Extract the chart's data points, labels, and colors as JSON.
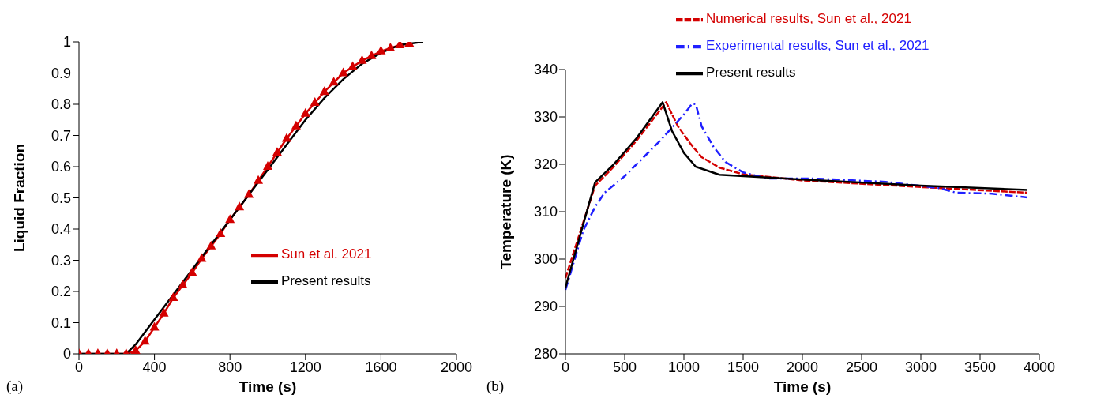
{
  "chart_data": [
    {
      "type": "line",
      "xlabel": "Time (s)",
      "ylabel": "Liquid Fraction",
      "xlim": [
        0,
        2000
      ],
      "ylim": [
        0,
        1
      ],
      "xticks": [
        0,
        400,
        800,
        1200,
        1600,
        2000
      ],
      "yticks": [
        0,
        0.1,
        0.2,
        0.3,
        0.4,
        0.5,
        0.6,
        0.7,
        0.8,
        0.9,
        1
      ],
      "grid": false,
      "legend": "right",
      "annotations": [
        "(a)"
      ],
      "series": [
        {
          "name": "Sun et al. 2021",
          "color": "#d40000",
          "marker": "triangle",
          "line_style": "solid",
          "x": [
            0,
            50,
            100,
            150,
            200,
            250,
            300,
            350,
            400,
            450,
            500,
            550,
            600,
            650,
            700,
            750,
            800,
            850,
            900,
            950,
            1000,
            1050,
            1100,
            1150,
            1200,
            1250,
            1300,
            1350,
            1400,
            1450,
            1500,
            1550,
            1600,
            1650,
            1700,
            1750
          ],
          "values": [
            0,
            0,
            0,
            0,
            0,
            0,
            0.01,
            0.04,
            0.085,
            0.13,
            0.18,
            0.22,
            0.26,
            0.305,
            0.345,
            0.385,
            0.43,
            0.47,
            0.51,
            0.555,
            0.6,
            0.645,
            0.69,
            0.73,
            0.77,
            0.805,
            0.84,
            0.87,
            0.9,
            0.92,
            0.94,
            0.955,
            0.97,
            0.98,
            0.99,
            0.995
          ]
        },
        {
          "name": "Present results",
          "color": "#000000",
          "marker": "none",
          "line_style": "solid",
          "x": [
            0,
            250,
            300,
            400,
            500,
            600,
            700,
            800,
            900,
            1000,
            1100,
            1200,
            1300,
            1400,
            1500,
            1600,
            1700,
            1820
          ],
          "values": [
            0,
            0,
            0.03,
            0.11,
            0.19,
            0.27,
            0.35,
            0.43,
            0.51,
            0.59,
            0.67,
            0.75,
            0.82,
            0.88,
            0.93,
            0.965,
            0.99,
            1
          ]
        }
      ]
    },
    {
      "type": "line",
      "xlabel": "Time (s)",
      "ylabel": "Temperature (K)",
      "xlim": [
        0,
        4000
      ],
      "ylim": [
        280,
        340
      ],
      "xticks": [
        0,
        500,
        1000,
        1500,
        2000,
        2500,
        3000,
        3500,
        4000
      ],
      "yticks": [
        280,
        290,
        300,
        310,
        320,
        330,
        340
      ],
      "grid": false,
      "legend": "top",
      "annotations": [
        "(b)"
      ],
      "series": [
        {
          "name": "Numerical results, Sun et al., 2021",
          "color": "#d40000",
          "marker": "none",
          "line_style": "dashed",
          "x": [
            0,
            250,
            400,
            600,
            850,
            950,
            1050,
            1150,
            1300,
            1500,
            2000,
            3000,
            3900
          ],
          "values": [
            296,
            315.5,
            319.3,
            325,
            333.1,
            328,
            324.5,
            321.5,
            319.3,
            317.9,
            316.6,
            315.2,
            314
          ]
        },
        {
          "name": "Experimental results, Sun et al., 2021",
          "color": "#2020ff",
          "marker": "none",
          "line_style": "dashdot",
          "x": [
            0,
            150,
            250,
            330,
            500,
            700,
            800,
            1000,
            1070,
            1100,
            1150,
            1250,
            1350,
            1500,
            1700,
            2100,
            2700,
            3150,
            3300,
            3600,
            3900
          ],
          "values": [
            293.5,
            306,
            311,
            314,
            317.5,
            322.5,
            325,
            330.5,
            332.8,
            332.7,
            328,
            323.7,
            320.5,
            318.3,
            317,
            317,
            316.3,
            315,
            314,
            313.8,
            313
          ]
        },
        {
          "name": "Present results",
          "color": "#000000",
          "marker": "none",
          "line_style": "solid",
          "x": [
            0,
            250,
            400,
            600,
            820,
            900,
            1000,
            1100,
            1300,
            2000,
            3000,
            3900
          ],
          "values": [
            294,
            316.2,
            319.8,
            325.5,
            333.1,
            327,
            322.4,
            319.5,
            317.8,
            316.8,
            315.5,
            314.6
          ]
        }
      ]
    }
  ]
}
